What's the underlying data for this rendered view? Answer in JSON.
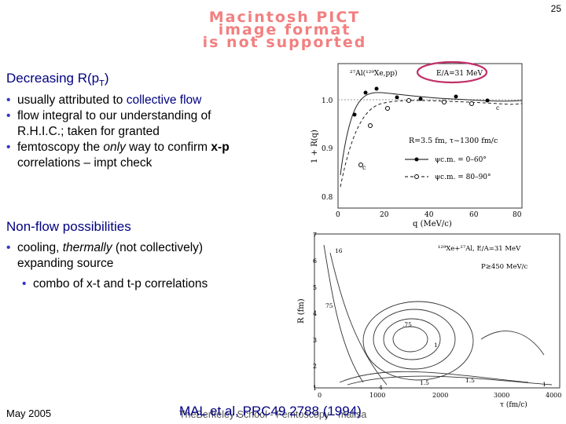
{
  "page_number": "25",
  "pict_placeholder": [
    "Macintosh PICT",
    "image format",
    "is not supported"
  ],
  "section1": {
    "heading_pre": "Decreasing R(p",
    "heading_sub": "T",
    "heading_post": ")",
    "bullets": [
      {
        "pre": "usually attributed to ",
        "em": "collective flow",
        "post": ""
      },
      {
        "pre": "flow integral to our understanding of R.H.I.C.; taken for granted",
        "em": "",
        "post": ""
      },
      {
        "pre": "femtoscopy the ",
        "em": "only",
        "post": " way to confirm",
        "bold": "x-p",
        "post2": " correlations – impt check"
      }
    ]
  },
  "section2": {
    "heading": "Non-flow possibilities",
    "bullet_pre": "cooling, ",
    "bullet_em": "thermally",
    "bullet_post": " (not collectively) expanding source",
    "sub_bullet": "combo of x-t and t-p correlations"
  },
  "footer": {
    "date": "May 2005",
    "citation": "MAL et al, PRC49 2788 (1994)",
    "school": "TheBerkeley School - Femtoscopy - malisa"
  },
  "figure1": {
    "reaction_label": "²⁷Al(¹²⁹Xe,pp)",
    "energy_label": "E/A=31 MeV",
    "radius_label": "R=3.5 fm, τ~1300 fm/c",
    "legend_psi": [
      "ψc.m. = 0–60°",
      "ψc.m. = 80–90°"
    ],
    "ylabel": "1 + R(q)",
    "xlabel": "q (MeV/c)",
    "yticks": [
      "1.0",
      "0.9",
      "0.8"
    ],
    "xticks": [
      "0",
      "20",
      "40",
      "60",
      "80"
    ],
    "panel_letters": [
      "c",
      "c"
    ]
  },
  "figure2": {
    "reaction_label": "¹²⁹Xe+²⁷Al, E/A=31 MeV",
    "momentum_label": "P≥450 MeV/c",
    "ylabel": "R (fm)",
    "xlabel": "τ (fm/c)",
    "yticks": [
      "7",
      "6",
      "5",
      "4",
      "3",
      "2",
      "1"
    ],
    "xticks": [
      "0",
      "1000",
      "2000",
      "3000",
      "4000"
    ],
    "contour_labels": [
      "16",
      "75",
      ".75",
      "1",
      "4",
      "1.5",
      "1.5",
      "1"
    ],
    "highlight_color": "#c0306a"
  }
}
